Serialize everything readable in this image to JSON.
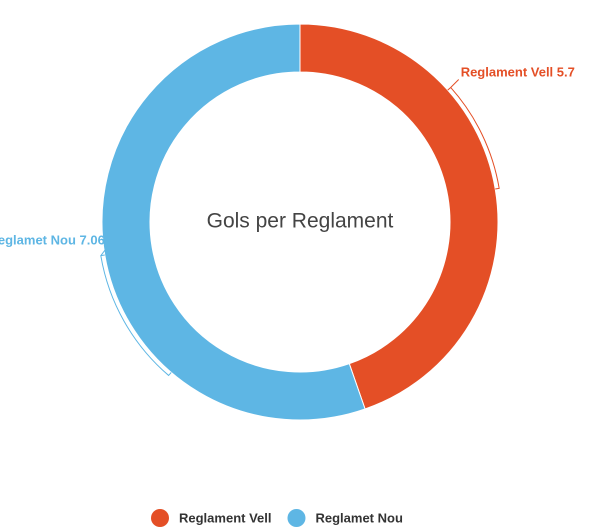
{
  "chart_data": {
    "type": "pie",
    "title": "Gols per Reglament",
    "categories": [
      "Reglament Vell",
      "Reglamet Nou"
    ],
    "values": [
      5.7,
      7.06
    ],
    "colors": [
      "#e44f26",
      "#5eb6e4"
    ]
  }
}
